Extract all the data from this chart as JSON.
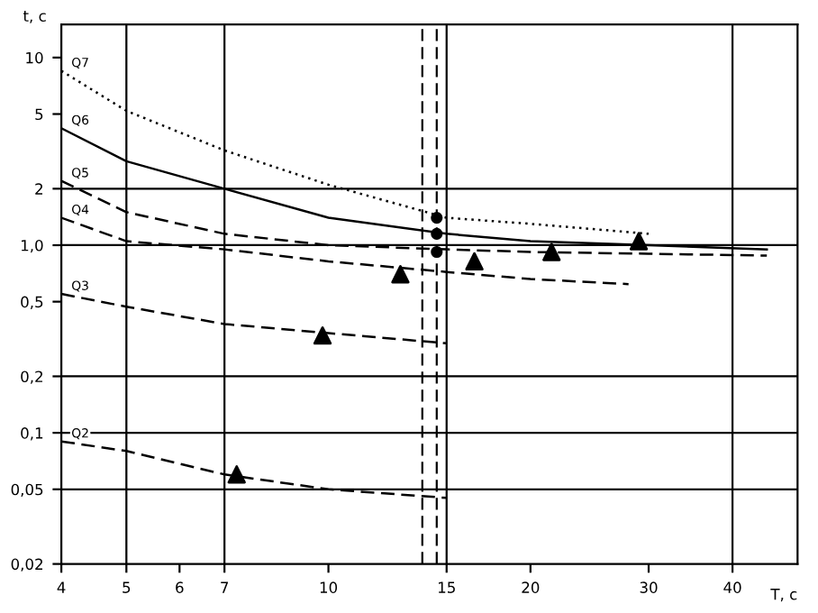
{
  "chart_data": {
    "type": "line",
    "xlabel": "T, с",
    "ylabel": "t, с",
    "log": "xy",
    "xlim": [
      4,
      50
    ],
    "ylim": [
      0.02,
      15
    ],
    "xticks": [
      4,
      5,
      6,
      7,
      10,
      15,
      20,
      30,
      40
    ],
    "yticks": [
      {
        "value": 0.02,
        "label": "0,02"
      },
      {
        "value": 0.05,
        "label": "0,05"
      },
      {
        "value": 0.1,
        "label": "0,1"
      },
      {
        "value": 0.2,
        "label": "0,2"
      },
      {
        "value": 0.5,
        "label": "0,5"
      },
      {
        "value": 1,
        "label": "1,0"
      },
      2,
      5,
      10
    ],
    "grid": false,
    "marker": "none",
    "series": [
      {
        "name": "Q7",
        "color": "#000000",
        "line_style": "dotted",
        "x": [
          4,
          5,
          7,
          10,
          15,
          20,
          30
        ],
        "values": [
          8.5,
          5.2,
          3.2,
          2.1,
          1.4,
          1.3,
          1.15
        ]
      },
      {
        "name": "Q6",
        "color": "#000000",
        "line_style": "solid",
        "x": [
          4,
          5,
          7,
          10,
          15,
          20,
          30,
          45
        ],
        "values": [
          4.2,
          2.8,
          2.0,
          1.4,
          1.15,
          1.05,
          1.0,
          0.95
        ]
      },
      {
        "name": "Q5",
        "color": "#000000",
        "line_style": "dashed",
        "x": [
          4,
          5,
          7,
          10,
          15,
          20,
          30,
          45
        ],
        "values": [
          2.2,
          1.5,
          1.15,
          1.0,
          0.95,
          0.92,
          0.9,
          0.88
        ]
      },
      {
        "name": "Q4",
        "color": "#000000",
        "line_style": "dashed",
        "x": [
          4,
          5,
          7,
          10,
          15,
          20,
          28
        ],
        "values": [
          1.4,
          1.05,
          0.95,
          0.82,
          0.72,
          0.66,
          0.62
        ]
      },
      {
        "name": "Q3",
        "color": "#000000",
        "line_style": "dashed",
        "x": [
          4,
          5,
          7,
          10,
          15
        ],
        "values": [
          0.55,
          0.47,
          0.38,
          0.34,
          0.3
        ]
      },
      {
        "name": "Q2",
        "color": "#000000",
        "line_style": "dashed",
        "x": [
          4,
          5,
          7,
          10,
          15
        ],
        "values": [
          0.09,
          0.08,
          0.06,
          0.05,
          0.045
        ]
      },
      {
        "type": "scatter",
        "marker": "triangle",
        "color": "#000000",
        "x": [
          7.3,
          9.8,
          12.8,
          16.5,
          21.5,
          29
        ],
        "values": [
          0.06,
          0.33,
          0.7,
          0.82,
          0.92,
          1.05
        ]
      },
      {
        "type": "scatter",
        "marker": "circle",
        "color": "#000000",
        "x": [
          14.5,
          14.5,
          14.5
        ],
        "values": [
          1.4,
          1.15,
          0.92
        ]
      }
    ],
    "ref_lines": [
      {
        "axis": "x",
        "value": 5,
        "color": "#000000"
      },
      {
        "axis": "x",
        "value": 7,
        "color": "#000000"
      },
      {
        "axis": "x",
        "value": 15,
        "color": "#000000"
      },
      {
        "axis": "x",
        "value": 40,
        "color": "#000000"
      },
      {
        "axis": "y",
        "value": 0.05,
        "color": "#000000"
      },
      {
        "axis": "y",
        "value": 0.1,
        "color": "#000000"
      },
      {
        "axis": "y",
        "value": 0.2,
        "color": "#000000"
      },
      {
        "axis": "y",
        "value": 1,
        "color": "#000000"
      },
      {
        "axis": "y",
        "value": 2,
        "color": "#000000"
      },
      {
        "axis": "x",
        "value": 13.8,
        "color": "#000000",
        "line_style": "dashed"
      },
      {
        "axis": "x",
        "value": 14.5,
        "color": "#000000",
        "line_style": "dashed"
      }
    ]
  }
}
